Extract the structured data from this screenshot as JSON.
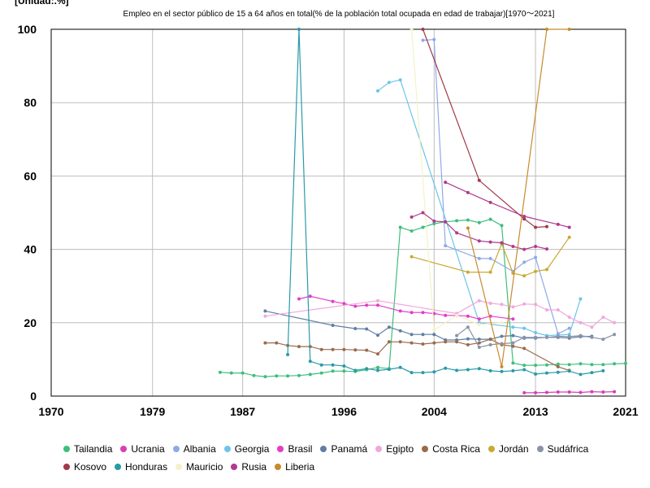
{
  "chart_data": {
    "type": "line",
    "unit_label": "[Unidad:.%]",
    "title": "Empleo en el sector público de 15 a 64 años en total(% de la población total ocupada en edad de trabajar)[1970～2021]",
    "xlim": [
      1970,
      2021
    ],
    "ylim": [
      0,
      100
    ],
    "x_ticks": [
      "1970",
      "1979",
      "1987",
      "1996",
      "2004",
      "2013",
      "2021"
    ],
    "y_ticks": [
      "0",
      "20",
      "40",
      "60",
      "80",
      "100"
    ],
    "grid": true,
    "legend_position": "bottom",
    "series": [
      {
        "name": "Tailandia",
        "color": "#3dbf7c",
        "points": [
          [
            1985,
            6.5
          ],
          [
            1986,
            6.3
          ],
          [
            1987,
            6.3
          ],
          [
            1988,
            5.6
          ],
          [
            1989,
            5.3
          ],
          [
            1990,
            5.5
          ],
          [
            1991,
            5.5
          ],
          [
            1992,
            5.6
          ],
          [
            1993,
            5.9
          ],
          [
            1994,
            6.3
          ],
          [
            1995,
            6.8
          ],
          [
            1996,
            6.8
          ],
          [
            1997,
            6.7
          ],
          [
            1998,
            7.2
          ],
          [
            1999,
            7.8
          ],
          [
            2000,
            7.5
          ],
          [
            2001,
            46
          ],
          [
            2002,
            45
          ],
          [
            2003,
            46
          ],
          [
            2004,
            47
          ],
          [
            2005,
            47.5
          ],
          [
            2006,
            47.8
          ],
          [
            2007,
            48
          ],
          [
            2008,
            47.3
          ],
          [
            2009,
            48.2
          ],
          [
            2010,
            46.5
          ],
          [
            2011,
            9
          ],
          [
            2012,
            8.4
          ],
          [
            2013,
            8.4
          ],
          [
            2014,
            8.5
          ],
          [
            2015,
            8.7
          ],
          [
            2016,
            8.6
          ],
          [
            2017,
            8.8
          ],
          [
            2018,
            8.6
          ],
          [
            2019,
            8.6
          ],
          [
            2020,
            8.8
          ],
          [
            2021,
            8.9
          ]
        ]
      },
      {
        "name": "Ucrania",
        "color": "#d63fb5",
        "points": [
          [
            2012,
            0.9
          ],
          [
            2013,
            0.9
          ],
          [
            2014,
            1
          ],
          [
            2015,
            1.1
          ],
          [
            2016,
            1.1
          ],
          [
            2017,
            1
          ],
          [
            2018,
            1.2
          ],
          [
            2019,
            1.1
          ],
          [
            2020,
            1.2
          ]
        ]
      },
      {
        "name": "Albania",
        "color": "#8fa9e8",
        "points": [
          [
            2003,
            97
          ],
          [
            2004,
            97.2
          ],
          [
            2005,
            41
          ],
          [
            2008,
            37.5
          ],
          [
            2009,
            37.5
          ],
          [
            2011,
            34
          ],
          [
            2012,
            36.5
          ],
          [
            2013,
            37.8
          ],
          [
            2015,
            17
          ],
          [
            2016,
            18.5
          ]
        ]
      },
      {
        "name": "Georgia",
        "color": "#6ec4e8",
        "points": [
          [
            1999,
            83.2
          ],
          [
            2000,
            85.5
          ],
          [
            2001,
            86.2
          ],
          [
            2008,
            20
          ],
          [
            2011,
            18.8
          ],
          [
            2012,
            18.5
          ],
          [
            2013,
            17.3
          ],
          [
            2014,
            16.5
          ],
          [
            2016,
            16.8
          ],
          [
            2017,
            26.5
          ]
        ]
      },
      {
        "name": "Brasil",
        "color": "#e23dc9",
        "points": [
          [
            1992,
            26.5
          ],
          [
            1993,
            27.2
          ],
          [
            1995,
            25.8
          ],
          [
            1996,
            25.2
          ],
          [
            1997,
            24.5
          ],
          [
            1998,
            24.8
          ],
          [
            1999,
            24.8
          ],
          [
            2001,
            23.2
          ],
          [
            2002,
            22.8
          ],
          [
            2003,
            22.8
          ],
          [
            2004,
            22.5
          ],
          [
            2005,
            22
          ],
          [
            2006,
            22
          ],
          [
            2007,
            21.8
          ],
          [
            2008,
            21
          ],
          [
            2009,
            21.8
          ],
          [
            2011,
            21
          ]
        ]
      },
      {
        "name": "Panamá",
        "color": "#5f7fa3",
        "points": [
          [
            1989,
            23.2
          ],
          [
            1995,
            19.3
          ],
          [
            1997,
            18.4
          ],
          [
            1998,
            18.3
          ],
          [
            1999,
            16.6
          ],
          [
            2000,
            18.8
          ],
          [
            2001,
            17.8
          ],
          [
            2002,
            16.8
          ],
          [
            2003,
            16.8
          ],
          [
            2004,
            16.8
          ],
          [
            2005,
            15.3
          ],
          [
            2006,
            15.3
          ],
          [
            2007,
            15.6
          ],
          [
            2008,
            15.5
          ],
          [
            2009,
            15.5
          ],
          [
            2010,
            16.3
          ],
          [
            2011,
            16.5
          ],
          [
            2012,
            15.8
          ],
          [
            2013,
            15.8
          ],
          [
            2014,
            16
          ],
          [
            2015,
            16
          ],
          [
            2016,
            15.8
          ],
          [
            2017,
            16.2
          ],
          [
            2018,
            16.3
          ]
        ]
      },
      {
        "name": "Egipto",
        "color": "#f0a8dc",
        "points": [
          [
            1989,
            21.8
          ],
          [
            1999,
            26
          ],
          [
            2006,
            22.5
          ],
          [
            2008,
            26
          ],
          [
            2009,
            25.3
          ],
          [
            2010,
            25
          ],
          [
            2011,
            24.3
          ],
          [
            2012,
            25.1
          ],
          [
            2013,
            25
          ],
          [
            2014,
            23.5
          ],
          [
            2015,
            23.5
          ],
          [
            2016,
            21.5
          ],
          [
            2017,
            20
          ],
          [
            2018,
            18.8
          ],
          [
            2019,
            21.5
          ],
          [
            2020,
            20
          ]
        ]
      },
      {
        "name": "Costa Rica",
        "color": "#9a6b4b",
        "points": [
          [
            1989,
            14.5
          ],
          [
            1990,
            14.5
          ],
          [
            1991,
            13.8
          ],
          [
            1992,
            13.5
          ],
          [
            1993,
            13.5
          ],
          [
            1994,
            12.7
          ],
          [
            1995,
            12.7
          ],
          [
            1996,
            12.7
          ],
          [
            1997,
            12.6
          ],
          [
            1998,
            12.5
          ],
          [
            1999,
            11.5
          ],
          [
            2000,
            14.8
          ],
          [
            2001,
            14.8
          ],
          [
            2002,
            14.5
          ],
          [
            2003,
            14.2
          ],
          [
            2004,
            14.5
          ],
          [
            2005,
            14.8
          ],
          [
            2006,
            14.8
          ],
          [
            2007,
            14
          ],
          [
            2008,
            14.5
          ],
          [
            2009,
            15.5
          ],
          [
            2010,
            14
          ],
          [
            2011,
            13.6
          ],
          [
            2012,
            13
          ],
          [
            2015,
            8
          ],
          [
            2016,
            7
          ]
        ]
      },
      {
        "name": "Jordán",
        "color": "#c9a934",
        "points": [
          [
            2002,
            38
          ],
          [
            2007,
            33.8
          ],
          [
            2009,
            33.8
          ],
          [
            2010,
            41.5
          ],
          [
            2011,
            33.5
          ],
          [
            2012,
            32.8
          ],
          [
            2013,
            34
          ],
          [
            2014,
            34.5
          ],
          [
            2016,
            43.3
          ]
        ]
      },
      {
        "name": "Sudáfrica",
        "color": "#8a93a8",
        "points": [
          [
            2006,
            16.5
          ],
          [
            2007,
            18.8
          ],
          [
            2008,
            13.3
          ],
          [
            2009,
            14
          ],
          [
            2010,
            14.3
          ],
          [
            2011,
            14.5
          ],
          [
            2012,
            16
          ],
          [
            2013,
            16
          ],
          [
            2014,
            16
          ],
          [
            2015,
            16.3
          ],
          [
            2016,
            16.2
          ],
          [
            2017,
            16.5
          ],
          [
            2018,
            16
          ],
          [
            2019,
            15.5
          ],
          [
            2020,
            16.8
          ]
        ]
      },
      {
        "name": "Kosovo",
        "color": "#a0394a",
        "points": [
          [
            2003,
            100
          ],
          [
            2008,
            58.8
          ],
          [
            2012,
            48.3
          ],
          [
            2013,
            46
          ],
          [
            2014,
            46.2
          ]
        ]
      },
      {
        "name": "Honduras",
        "color": "#2a9aa8",
        "points": [
          [
            1991,
            11.3
          ],
          [
            1992,
            100
          ],
          [
            1993,
            9.5
          ],
          [
            1994,
            8.5
          ],
          [
            1995,
            8.5
          ],
          [
            1996,
            8.2
          ],
          [
            1997,
            7
          ],
          [
            1998,
            7.5
          ],
          [
            1999,
            7
          ],
          [
            2000,
            7.3
          ],
          [
            2001,
            7.8
          ],
          [
            2002,
            6.4
          ],
          [
            2003,
            6.4
          ],
          [
            2004,
            6.6
          ],
          [
            2005,
            7.6
          ],
          [
            2006,
            7
          ],
          [
            2007,
            7.2
          ],
          [
            2008,
            7.5
          ],
          [
            2009,
            6.9
          ],
          [
            2010,
            6.7
          ],
          [
            2011,
            6.9
          ],
          [
            2012,
            7.2
          ],
          [
            2013,
            6
          ],
          [
            2014,
            6.3
          ],
          [
            2015,
            6.5
          ],
          [
            2016,
            6.8
          ],
          [
            2017,
            5.9
          ],
          [
            2018,
            6.4
          ],
          [
            2019,
            6.9
          ]
        ]
      },
      {
        "name": "Mauricio",
        "color": "#f4f2c8",
        "points": [
          [
            2002,
            100
          ],
          [
            2004,
            18
          ],
          [
            2006,
            22
          ],
          [
            2008,
            19.5
          ],
          [
            2010,
            20
          ]
        ]
      },
      {
        "name": "Rusia",
        "color": "#b03a8e",
        "points": [
          [
            2002,
            48.8
          ],
          [
            2003,
            50
          ],
          [
            2004,
            47.7
          ],
          [
            2005,
            47.5
          ],
          [
            2006,
            44.5
          ],
          [
            2008,
            42.3
          ],
          [
            2009,
            42
          ],
          [
            2010,
            41.8
          ],
          [
            2011,
            40.8
          ],
          [
            2012,
            40
          ],
          [
            2013,
            40.8
          ],
          [
            2014,
            40.1
          ]
        ]
      },
      {
        "name": "Liberia",
        "color": "#c88a2e",
        "points": [
          [
            2007,
            45.8
          ],
          [
            2010,
            8
          ],
          [
            2014,
            100
          ],
          [
            2016,
            100
          ]
        ]
      }
    ],
    "series_extra": [
      {
        "color": "#b03a8e",
        "points": [
          [
            2005,
            58.3
          ],
          [
            2007,
            55.5
          ],
          [
            2009,
            52.8
          ],
          [
            2012,
            49
          ],
          [
            2015,
            46.8
          ],
          [
            2016,
            46
          ]
        ]
      }
    ]
  }
}
